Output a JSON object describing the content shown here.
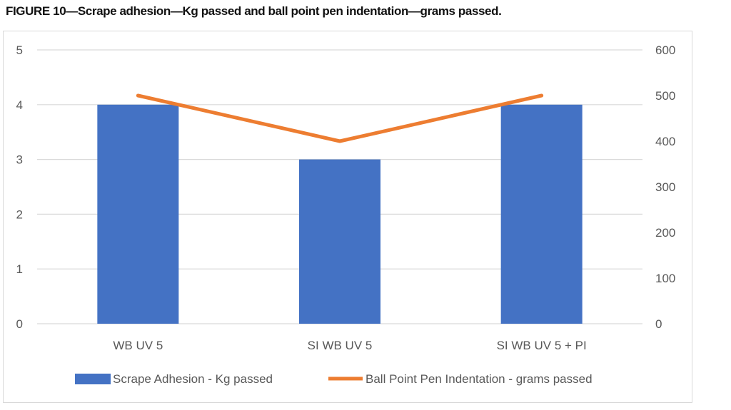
{
  "figure": {
    "title": "FIGURE 10—Scrape adhesion—Kg passed and ball point pen indentation—grams passed."
  },
  "colors": {
    "bar": "#4472c4",
    "line": "#ed7d31",
    "grid": "#d9d9d9",
    "text": "#595959"
  },
  "chart_data": {
    "type": "bar",
    "title": "FIGURE 10—Scrape adhesion—Kg passed and ball point pen indentation—grams passed.",
    "categories": [
      "WB UV 5",
      "SI WB UV 5",
      "SI WB UV 5 + PI"
    ],
    "series": [
      {
        "name": "Scrape Adhesion - Kg passed",
        "type": "bar",
        "axis": "left",
        "values": [
          4,
          3,
          4
        ]
      },
      {
        "name": "Ball Point Pen Indentation - grams passed",
        "type": "line",
        "axis": "right",
        "values": [
          500,
          400,
          500
        ]
      }
    ],
    "y_left": {
      "min": 0,
      "max": 5,
      "ticks": [
        0,
        1,
        2,
        3,
        4,
        5
      ]
    },
    "y_right": {
      "min": 0,
      "max": 600,
      "ticks": [
        0,
        100,
        200,
        300,
        400,
        500,
        600
      ]
    },
    "grid": true,
    "legend_position": "bottom"
  }
}
